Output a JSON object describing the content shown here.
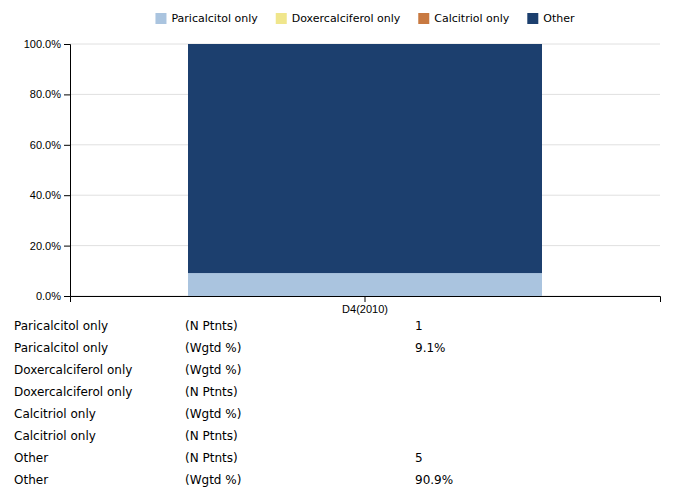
{
  "chart_data": {
    "type": "bar",
    "stacked": true,
    "categories": [
      "D4(2010)"
    ],
    "series": [
      {
        "name": "Paricalcitol only",
        "color": "#aac4df",
        "values": [
          9.1
        ]
      },
      {
        "name": "Doxercalciferol only",
        "color": "#f0e68c",
        "values": [
          0.0
        ]
      },
      {
        "name": "Calcitriol only",
        "color": "#c87941",
        "values": [
          0.0
        ]
      },
      {
        "name": "Other",
        "color": "#1c3f6e",
        "values": [
          90.9
        ]
      }
    ],
    "ylim": [
      0,
      100
    ],
    "yticks": [
      {
        "value": 0,
        "label": "0.0%"
      },
      {
        "value": 20,
        "label": "20.0%"
      },
      {
        "value": 40,
        "label": "40.0%"
      },
      {
        "value": 60,
        "label": "60.0%"
      },
      {
        "value": 80,
        "label": "80.0%"
      },
      {
        "value": 100,
        "label": "100.0%"
      }
    ],
    "grid": true,
    "legend": "top",
    "table_rows": [
      {
        "label": "Paricalcitol only",
        "sublabel": "(N Ptnts)",
        "value": "1"
      },
      {
        "label": "Paricalcitol only",
        "sublabel": "(Wgtd %)",
        "value": "9.1%"
      },
      {
        "label": "Doxercalciferol only",
        "sublabel": "(Wgtd %)"
      },
      {
        "label": "Doxercalciferol only",
        "sublabel": "(N Ptnts)"
      },
      {
        "label": "Calcitriol only",
        "sublabel": "(Wgtd %)"
      },
      {
        "label": "Calcitriol only",
        "sublabel": "(N Ptnts)"
      },
      {
        "label": "Other",
        "sublabel": "(N Ptnts)",
        "value": "5"
      },
      {
        "label": "Other",
        "sublabel": "(Wgtd %)",
        "value": "90.9%"
      }
    ]
  }
}
